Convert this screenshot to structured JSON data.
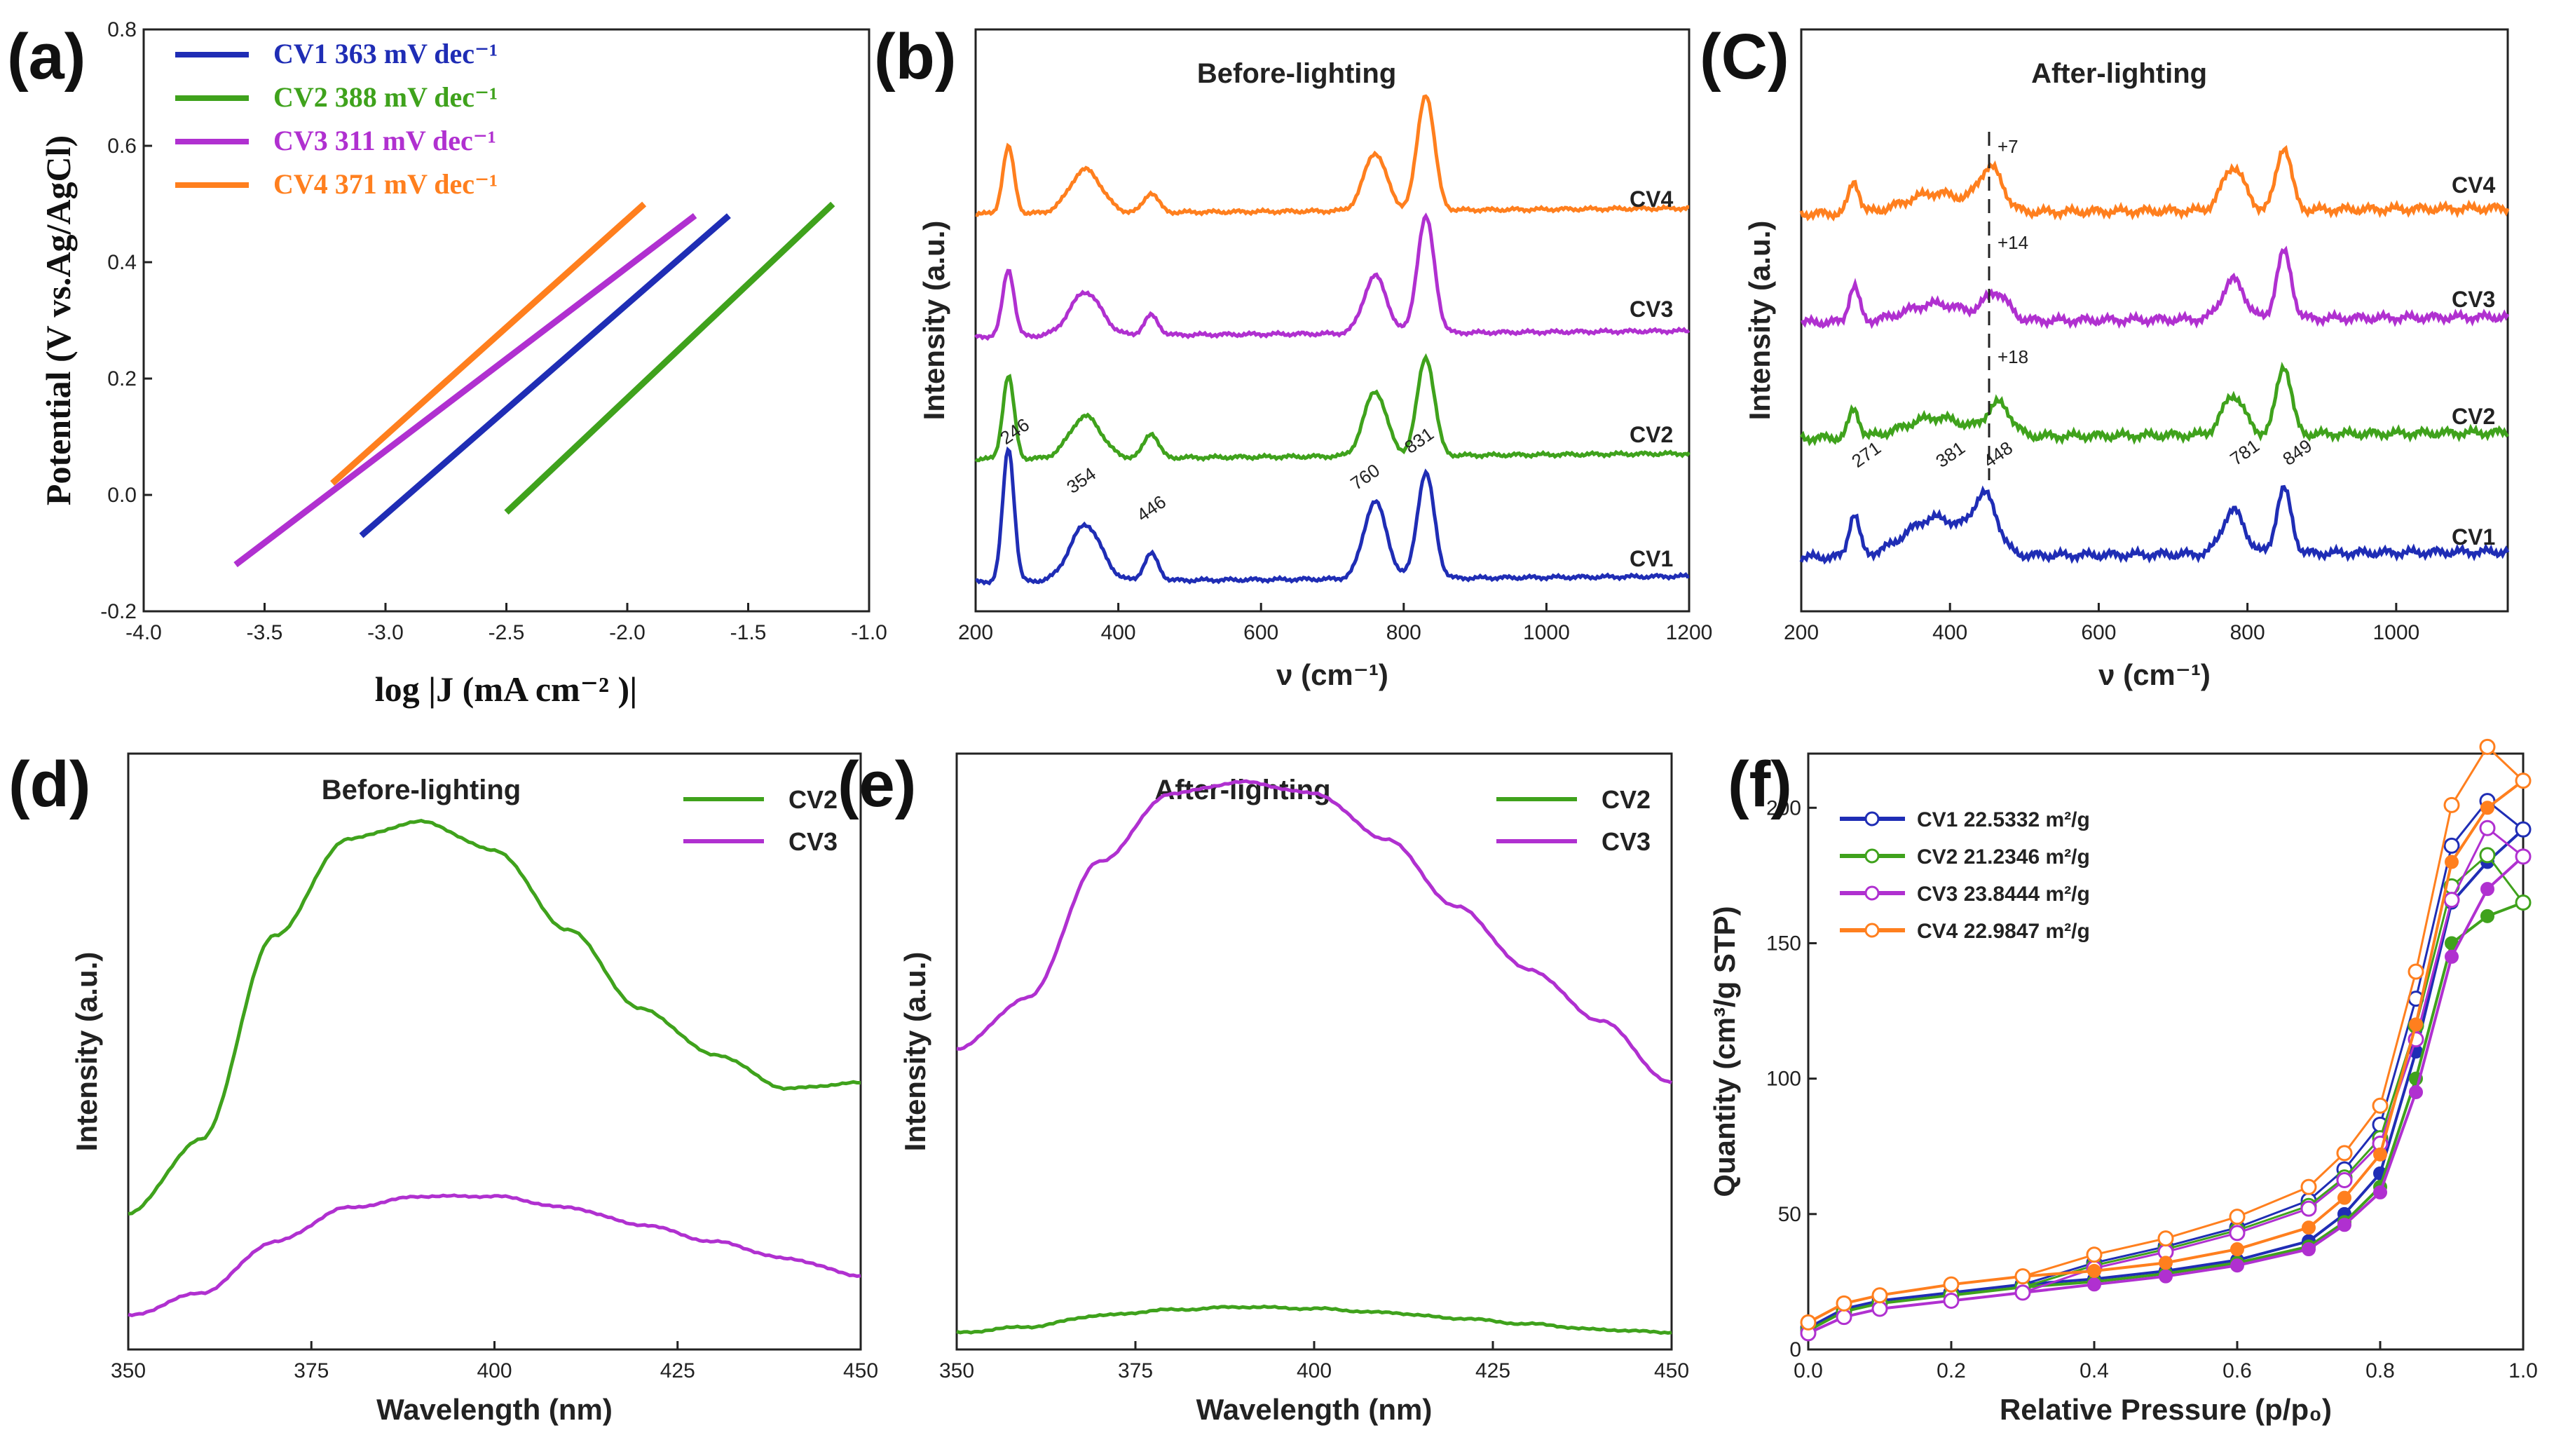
{
  "chart_data": [
    {
      "panel": "(a)",
      "type": "line",
      "title": "",
      "xlabel": "log |J (mA cm⁻² )|",
      "ylabel": "Potential (V vs.Ag/AgCl)",
      "xlim": [
        -4.0,
        -1.0
      ],
      "ylim": [
        -0.2,
        0.8
      ],
      "xticks": [
        "-4.0",
        "-3.5",
        "-3.0",
        "-2.5",
        "-2.0",
        "-1.5",
        "-1.0"
      ],
      "yticks": [
        "-0.2",
        "0.0",
        "0.2",
        "0.4",
        "0.6",
        "0.8"
      ],
      "series": [
        {
          "name": "CV1",
          "legend": "CV1 363 mV dec⁻¹",
          "color": "#1f2db5",
          "x": [
            -3.1,
            -1.58
          ],
          "y": [
            -0.07,
            0.48
          ]
        },
        {
          "name": "CV2",
          "legend": "CV2 388 mV dec⁻¹",
          "color": "#3fa21c",
          "x": [
            -2.5,
            -1.15
          ],
          "y": [
            -0.03,
            0.5
          ]
        },
        {
          "name": "CV3",
          "legend": "CV3 311 mV dec⁻¹",
          "color": "#b030d0",
          "x": [
            -3.62,
            -1.72
          ],
          "y": [
            -0.12,
            0.48
          ]
        },
        {
          "name": "CV4",
          "legend": "CV4 371 mV dec⁻¹",
          "color": "#ff7f1e",
          "x": [
            -3.22,
            -1.93
          ],
          "y": [
            0.02,
            0.5
          ]
        }
      ]
    },
    {
      "panel": "(b)",
      "type": "line",
      "title": "Before-lighting",
      "xlabel": "ν (cm⁻¹)",
      "ylabel": "Intensity (a.u.)",
      "xlim": [
        200,
        1200
      ],
      "xticks": [
        "200",
        "400",
        "600",
        "800",
        "1000",
        "1200"
      ],
      "peak_labels": [
        "246",
        "354",
        "446",
        "760",
        "831"
      ],
      "series": [
        {
          "name": "CV4",
          "color": "#ff7f1e",
          "peaks_cm": [
            246,
            354,
            446,
            760,
            831
          ]
        },
        {
          "name": "CV3",
          "color": "#b030d0",
          "peaks_cm": [
            246,
            354,
            446,
            760,
            831
          ]
        },
        {
          "name": "CV2",
          "color": "#3fa21c",
          "peaks_cm": [
            246,
            354,
            446,
            760,
            831
          ]
        },
        {
          "name": "CV1",
          "color": "#1f2db5",
          "peaks_cm": [
            246,
            354,
            446,
            760,
            831
          ]
        }
      ]
    },
    {
      "panel": "(C)",
      "type": "line",
      "title": "After-lighting",
      "xlabel": "ν (cm⁻¹)",
      "ylabel": "Intensity (a.u.)",
      "xlim": [
        200,
        1150
      ],
      "xticks": [
        "200",
        "400",
        "600",
        "800",
        "1000"
      ],
      "peak_labels": [
        "271",
        "381",
        "448",
        "781",
        "849"
      ],
      "shift_labels": [
        "+7",
        "+14",
        "+18"
      ],
      "series": [
        {
          "name": "CV4",
          "color": "#ff7f1e",
          "peaks_cm": [
            271,
            381,
            455,
            781,
            849
          ]
        },
        {
          "name": "CV3",
          "color": "#b030d0",
          "peaks_cm": [
            271,
            381,
            462,
            781,
            849
          ]
        },
        {
          "name": "CV2",
          "color": "#3fa21c",
          "peaks_cm": [
            271,
            381,
            466,
            781,
            849
          ]
        },
        {
          "name": "CV1",
          "color": "#1f2db5",
          "peaks_cm": [
            271,
            381,
            448,
            781,
            849
          ]
        }
      ]
    },
    {
      "panel": "(d)",
      "type": "line",
      "title": "Before-lighting",
      "xlabel": "Wavelength (nm)",
      "ylabel": "Intensity (a.u.)",
      "xlim": [
        350,
        450
      ],
      "xticks": [
        "350",
        "375",
        "400",
        "425",
        "450"
      ],
      "series": [
        {
          "name": "CV2",
          "color": "#3fa21c",
          "x": [
            350,
            360,
            370,
            380,
            390,
            400,
            410,
            420,
            430,
            440,
            450
          ],
          "y": [
            0.24,
            0.37,
            0.73,
            0.9,
            0.93,
            0.88,
            0.74,
            0.6,
            0.52,
            0.46,
            0.47
          ]
        },
        {
          "name": "CV3",
          "color": "#b030d0",
          "x": [
            350,
            360,
            370,
            380,
            390,
            400,
            410,
            420,
            430,
            440,
            450
          ],
          "y": [
            0.06,
            0.1,
            0.19,
            0.25,
            0.27,
            0.27,
            0.25,
            0.22,
            0.19,
            0.16,
            0.13
          ]
        }
      ]
    },
    {
      "panel": "(e)",
      "type": "line",
      "title": "After-lighting",
      "xlabel": "Wavelength (nm)",
      "ylabel": "Intensity (a.u.)",
      "xlim": [
        350,
        450
      ],
      "xticks": [
        "350",
        "375",
        "400",
        "425",
        "450"
      ],
      "series": [
        {
          "name": "CV2",
          "color": "#3fa21c",
          "x": [
            350,
            360,
            370,
            380,
            390,
            400,
            410,
            420,
            430,
            440,
            450
          ],
          "y": [
            0.03,
            0.04,
            0.06,
            0.07,
            0.075,
            0.072,
            0.065,
            0.055,
            0.045,
            0.035,
            0.03
          ]
        },
        {
          "name": "CV3",
          "color": "#b030d0",
          "x": [
            350,
            360,
            370,
            380,
            390,
            400,
            410,
            420,
            430,
            440,
            450
          ],
          "y": [
            0.53,
            0.62,
            0.86,
            0.98,
            1.0,
            0.98,
            0.9,
            0.78,
            0.67,
            0.58,
            0.47
          ]
        }
      ]
    },
    {
      "panel": "(f)",
      "type": "scatter",
      "title": "",
      "xlabel": "Relative Pressure (p/p₀)",
      "ylabel": "Quantity (cm³/g STP)",
      "xlim": [
        0.0,
        1.0
      ],
      "ylim": [
        0,
        220
      ],
      "xticks": [
        "0.0",
        "0.2",
        "0.4",
        "0.6",
        "0.8",
        "1.0"
      ],
      "yticks": [
        "0",
        "50",
        "100",
        "150",
        "200"
      ],
      "series": [
        {
          "name": "CV1",
          "legend": "CV1 22.5332 m²/g",
          "color": "#1f2db5",
          "x": [
            0.0,
            0.05,
            0.1,
            0.2,
            0.3,
            0.4,
            0.5,
            0.6,
            0.7,
            0.75,
            0.8,
            0.85,
            0.9,
            0.95,
            1.0
          ],
          "y": [
            8,
            15,
            18,
            21,
            24,
            26,
            29,
            33,
            40,
            50,
            65,
            110,
            165,
            180,
            192
          ]
        },
        {
          "name": "CV2",
          "legend": "CV2 21.2346 m²/g",
          "color": "#3fa21c",
          "x": [
            0.0,
            0.05,
            0.1,
            0.2,
            0.3,
            0.4,
            0.5,
            0.6,
            0.7,
            0.75,
            0.8,
            0.85,
            0.9,
            0.95,
            1.0
          ],
          "y": [
            7,
            14,
            17,
            20,
            23,
            25,
            28,
            32,
            38,
            47,
            60,
            100,
            150,
            160,
            165
          ]
        },
        {
          "name": "CV3",
          "legend": "CV3 23.8444 m²/g",
          "color": "#b030d0",
          "x": [
            0.0,
            0.05,
            0.1,
            0.2,
            0.3,
            0.4,
            0.5,
            0.6,
            0.7,
            0.75,
            0.8,
            0.85,
            0.9,
            0.95,
            1.0
          ],
          "y": [
            6,
            12,
            15,
            18,
            21,
            24,
            27,
            31,
            37,
            46,
            58,
            95,
            145,
            170,
            182
          ]
        },
        {
          "name": "CV4",
          "legend": "CV4 22.9847 m²/g",
          "color": "#ff7f1e",
          "x": [
            0.0,
            0.05,
            0.1,
            0.2,
            0.3,
            0.4,
            0.5,
            0.6,
            0.7,
            0.75,
            0.8,
            0.85,
            0.9,
            0.95,
            1.0
          ],
          "y": [
            10,
            17,
            20,
            24,
            27,
            29,
            32,
            37,
            45,
            56,
            72,
            120,
            180,
            200,
            210
          ]
        }
      ]
    }
  ]
}
